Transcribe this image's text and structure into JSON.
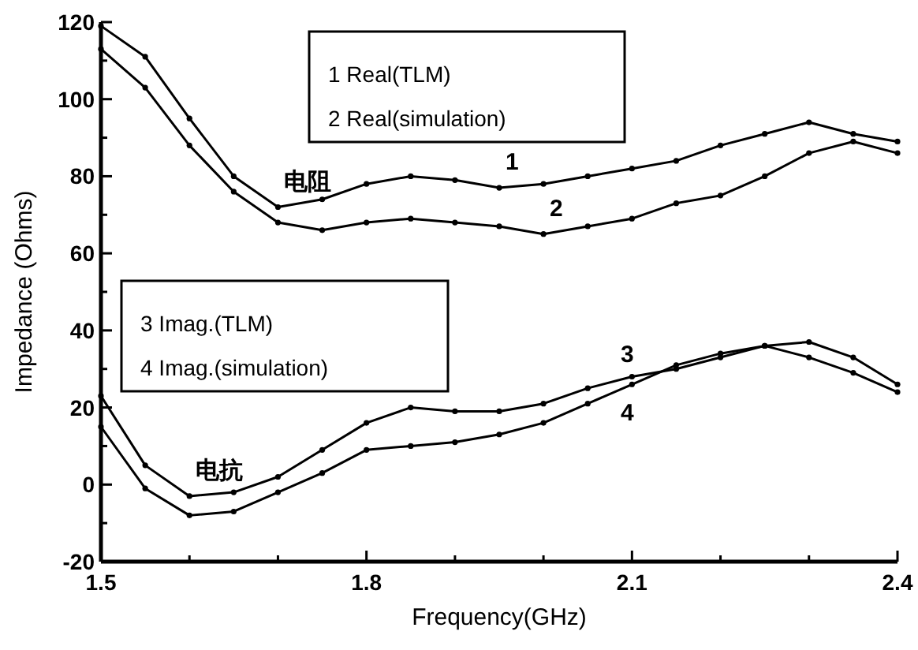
{
  "chart_data": {
    "type": "line",
    "xlabel": "Frequency(GHz)",
    "ylabel": "Impedance (Ohms)",
    "x": [
      1.5,
      1.55,
      1.6,
      1.65,
      1.7,
      1.75,
      1.8,
      1.85,
      1.9,
      1.95,
      2.0,
      2.05,
      2.1,
      2.15,
      2.2,
      2.25,
      2.3,
      2.35,
      2.4
    ],
    "series": [
      {
        "color": "#000000",
        "values": [
          119,
          111,
          95,
          80,
          72,
          74,
          78,
          80,
          79,
          77,
          78,
          80,
          82,
          84,
          88,
          91,
          94,
          91,
          89
        ]
      },
      {
        "color": "#000000",
        "values": [
          113,
          103,
          88,
          76,
          68,
          66,
          68,
          69,
          68,
          67,
          65,
          67,
          69,
          73,
          75,
          80,
          86,
          89,
          86
        ]
      },
      {
        "color": "#000000",
        "values": [
          23,
          5,
          -3,
          -2,
          2,
          9,
          16,
          20,
          19,
          19,
          21,
          25,
          28,
          30,
          33,
          36,
          37,
          33,
          26
        ]
      },
      {
        "color": "#000000",
        "values": [
          15,
          -1,
          -8,
          -7,
          -2,
          3,
          9,
          10,
          11,
          13,
          16,
          21,
          26,
          31,
          34,
          36,
          33,
          29,
          24
        ]
      }
    ],
    "xlim": [
      1.5,
      2.4
    ],
    "xticks": [
      1.5,
      {
        "value": 1.6,
        "label": null
      },
      {
        "value": 1.7,
        "label": null
      },
      1.8,
      {
        "value": 1.9,
        "label": null
      },
      {
        "value": 2.0,
        "label": null
      },
      2.1,
      {
        "value": 2.2,
        "label": null
      },
      {
        "value": 2.3,
        "label": null
      },
      2.4
    ],
    "ylim": [
      -20,
      120
    ],
    "yticks": [
      -20,
      {
        "value": -10,
        "label": null
      },
      0,
      {
        "value": 10,
        "label": null
      },
      20,
      {
        "value": 30,
        "label": null
      },
      40,
      {
        "value": 50,
        "label": null
      },
      60,
      {
        "value": 70,
        "label": null
      },
      80,
      {
        "value": 90,
        "label": null
      },
      100,
      {
        "value": 110,
        "label": null
      },
      120
    ],
    "grid": false,
    "marker": "circle",
    "line_style": "solid",
    "annotations": [
      "1 Real(TLM)",
      "2 Real(simulation)",
      "3 Imag.(TLM)",
      "4 Imag.(simulation)",
      {
        "text": "1",
        "x": 1.95,
        "y": 77
      },
      {
        "text": "2",
        "x": 2.0,
        "y": 65
      },
      {
        "text": "3",
        "x": 2.08,
        "y": 27
      },
      {
        "text": "4",
        "x": 2.08,
        "y": 25
      },
      {
        "text": "电阻",
        "x": 1.7,
        "y": 72
      },
      {
        "text": "电抗",
        "x": 1.6,
        "y": -3
      }
    ]
  }
}
